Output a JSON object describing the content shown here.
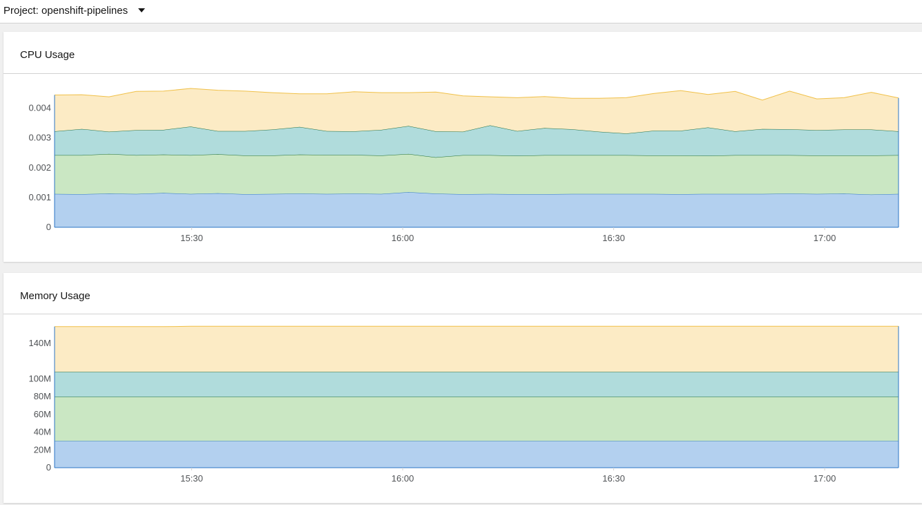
{
  "project_selector": {
    "label": "Project: openshift-pipelines",
    "icon": "caret-down-icon"
  },
  "colors": {
    "blue_fill": "#b3d0ef",
    "blue_line": "#2b74c4",
    "green_fill": "#cae7c3",
    "green_line": "#1e6b2e",
    "teal_fill": "#b0dcdc",
    "teal_line": "#1d6b3e",
    "yellow_fill": "#fcebc5",
    "yellow_line": "#f0c048"
  },
  "cards": [
    {
      "title": "CPU Usage",
      "chart_data": {
        "type": "area",
        "stacked": true,
        "x_ticks": [
          "15:30",
          "16:00",
          "16:30",
          "17:00"
        ],
        "x_tick_minutes": [
          930,
          960,
          990,
          1020
        ],
        "x_range_minutes": [
          910.5,
          1030.5
        ],
        "y_ticks": [
          "0",
          "0.001",
          "0.002",
          "0.003",
          "0.004"
        ],
        "y_tick_values": [
          0,
          0.001,
          0.002,
          0.003,
          0.004
        ],
        "ylim": [
          0,
          0.0048
        ],
        "grid": true,
        "series": [
          {
            "values": [
              0.00112,
              0.00111,
              0.00113,
              0.00112,
              0.00115,
              0.00112,
              0.00114,
              0.00111,
              0.00112,
              0.00113,
              0.00112,
              0.00113,
              0.00112,
              0.00118,
              0.00113,
              0.00111,
              0.00112,
              0.00111,
              0.00111,
              0.00112,
              0.00112,
              0.00112,
              0.00112,
              0.00111,
              0.00112,
              0.00112,
              0.00112,
              0.00113,
              0.00112,
              0.00113,
              0.0011,
              0.00112
            ]
          },
          {
            "values": [
              0.0013,
              0.00131,
              0.00133,
              0.0013,
              0.00129,
              0.0013,
              0.00131,
              0.0013,
              0.00129,
              0.00131,
              0.00131,
              0.0013,
              0.00129,
              0.00128,
              0.00122,
              0.00131,
              0.0013,
              0.00129,
              0.00131,
              0.0013,
              0.0013,
              0.0013,
              0.00129,
              0.0013,
              0.00128,
              0.0013,
              0.0013,
              0.00129,
              0.00129,
              0.00128,
              0.00131,
              0.0013
            ]
          },
          {
            "values": [
              0.0008,
              0.00088,
              0.00075,
              0.00084,
              0.00083,
              0.00096,
              0.00078,
              0.00082,
              0.00087,
              0.00093,
              0.0008,
              0.00079,
              0.00086,
              0.00094,
              0.00087,
              0.00079,
              0.001,
              0.00083,
              0.00091,
              0.00087,
              0.00079,
              0.00073,
              0.00083,
              0.00083,
              0.00095,
              0.0008,
              0.00088,
              0.00087,
              0.00085,
              0.00087,
              0.00087,
              0.0008
            ]
          },
          {
            "values": [
              0.00122,
              0.00115,
              0.00117,
              0.0013,
              0.0013,
              0.00128,
              0.00137,
              0.00134,
              0.00124,
              0.00111,
              0.00125,
              0.00133,
              0.00125,
              0.00112,
              0.00132,
              0.0012,
              0.00096,
              0.00112,
              0.00106,
              0.00104,
              0.00112,
              0.0012,
              0.00125,
              0.00135,
              0.00111,
              0.00134,
              0.00097,
              0.00128,
              0.00105,
              0.00107,
              0.00125,
              0.00112
            ]
          }
        ]
      }
    },
    {
      "title": "Memory Usage",
      "chart_data": {
        "type": "area",
        "stacked": true,
        "x_ticks": [
          "15:30",
          "16:00",
          "16:30",
          "17:00"
        ],
        "x_tick_minutes": [
          930,
          960,
          990,
          1020
        ],
        "x_range_minutes": [
          910.5,
          1030.5
        ],
        "y_ticks": [
          "0",
          "20M",
          "40M",
          "60M",
          "80M",
          "100M",
          "140M"
        ],
        "y_tick_values": [
          0,
          20000000,
          40000000,
          60000000,
          80000000,
          100000000,
          140000000
        ],
        "ylim": [
          0,
          160000000
        ],
        "grid": true,
        "series": [
          {
            "values": [
              30000000,
              30000000,
              30000000,
              30000000,
              30000000,
              30000000,
              30000000,
              30000000,
              30000000,
              30000000,
              30000000,
              30000000,
              30000000,
              30000000,
              30000000,
              30000000,
              30000000,
              30000000,
              30000000,
              30000000,
              30000000,
              30000000,
              30000000,
              30000000,
              30000000,
              30000000,
              30000000,
              30000000,
              30000000,
              30000000,
              30000000,
              30000000
            ]
          },
          {
            "values": [
              49600000,
              49600000,
              49600000,
              49600000,
              49600000,
              49600000,
              49600000,
              49600000,
              49600000,
              49600000,
              49600000,
              49600000,
              49600000,
              49600000,
              49600000,
              49600000,
              49600000,
              49600000,
              49600000,
              49600000,
              49600000,
              49600000,
              49600000,
              49600000,
              49600000,
              49600000,
              49600000,
              49600000,
              49600000,
              49600000,
              49600000,
              49600000
            ]
          },
          {
            "values": [
              28200000,
              28200000,
              28200000,
              28200000,
              28200000,
              28200000,
              28200000,
              28200000,
              28200000,
              28200000,
              28200000,
              28200000,
              28200000,
              28200000,
              28200000,
              28200000,
              28200000,
              28200000,
              28200000,
              28200000,
              28200000,
              28200000,
              28200000,
              28200000,
              28200000,
              28200000,
              28200000,
              28200000,
              28200000,
              28200000,
              28200000,
              28200000
            ]
          },
          {
            "values": [
              50800000,
              50800000,
              50800000,
              50800000,
              50800000,
              51200000,
              51200000,
              51200000,
              51200000,
              51200000,
              51200000,
              51200000,
              51200000,
              51200000,
              51200000,
              51200000,
              51200000,
              51200000,
              51200000,
              51200000,
              51200000,
              51200000,
              51200000,
              51200000,
              51200000,
              51200000,
              51200000,
              51200000,
              51200000,
              51200000,
              51200000,
              51200000
            ]
          }
        ]
      }
    }
  ]
}
